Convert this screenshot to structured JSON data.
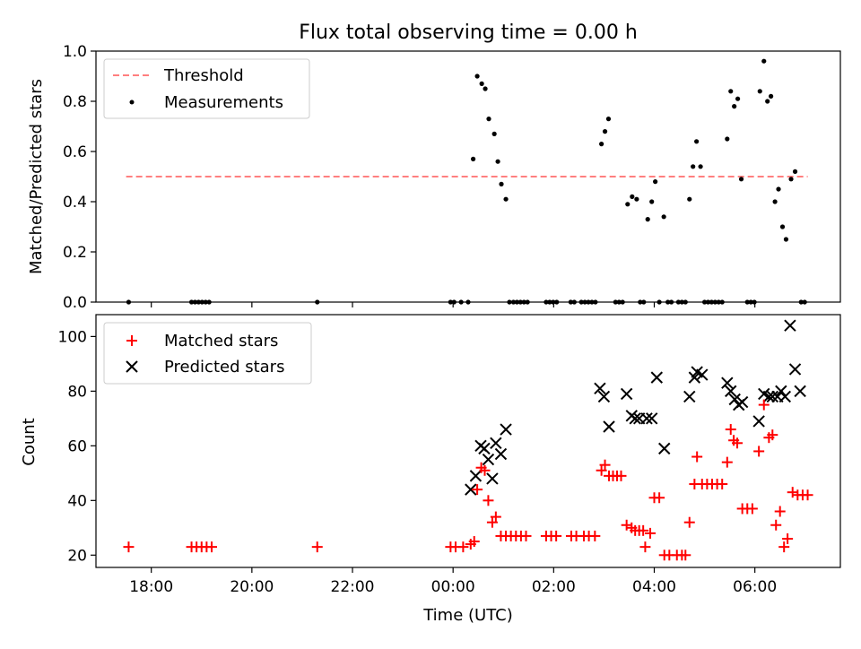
{
  "chart_data": [
    {
      "type": "scatter",
      "title": "Flux total observing time = 0.00 h",
      "xlabel": "",
      "ylabel": "Matched/Predicted stars",
      "xlim": [
        -7.1,
        7.7
      ],
      "ylim": [
        0.0,
        1.0
      ],
      "yticks": [
        "0.0",
        "0.2",
        "0.4",
        "0.6",
        "0.8",
        "1.0"
      ],
      "legend_position": "top-left",
      "threshold": {
        "name": "Threshold",
        "y": 0.5,
        "x_range": [
          -6.5,
          7.05
        ],
        "color": "#ff7f7f"
      },
      "series": [
        {
          "name": "Measurements",
          "color": "#000000",
          "points": [
            [
              -6.45,
              0.0
            ],
            [
              -5.2,
              0.0
            ],
            [
              -5.13,
              0.0
            ],
            [
              -5.06,
              0.0
            ],
            [
              -4.99,
              0.0
            ],
            [
              -4.92,
              0.0
            ],
            [
              -4.85,
              0.0
            ],
            [
              -2.7,
              0.0
            ],
            [
              -0.05,
              0.0
            ],
            [
              0.02,
              0.0
            ],
            [
              0.16,
              0.0
            ],
            [
              0.3,
              0.0
            ],
            [
              0.4,
              0.57
            ],
            [
              0.48,
              0.9
            ],
            [
              0.57,
              0.87
            ],
            [
              0.64,
              0.85
            ],
            [
              0.71,
              0.73
            ],
            [
              0.82,
              0.67
            ],
            [
              0.89,
              0.56
            ],
            [
              0.96,
              0.47
            ],
            [
              1.05,
              0.41
            ],
            [
              1.12,
              0.0
            ],
            [
              1.2,
              0.0
            ],
            [
              1.27,
              0.0
            ],
            [
              1.34,
              0.0
            ],
            [
              1.41,
              0.0
            ],
            [
              1.48,
              0.0
            ],
            [
              1.85,
              0.0
            ],
            [
              1.92,
              0.0
            ],
            [
              1.99,
              0.0
            ],
            [
              2.06,
              0.0
            ],
            [
              2.34,
              0.0
            ],
            [
              2.41,
              0.0
            ],
            [
              2.55,
              0.0
            ],
            [
              2.62,
              0.0
            ],
            [
              2.69,
              0.0
            ],
            [
              2.76,
              0.0
            ],
            [
              2.83,
              0.0
            ],
            [
              2.95,
              0.63
            ],
            [
              3.02,
              0.68
            ],
            [
              3.09,
              0.73
            ],
            [
              3.23,
              0.0
            ],
            [
              3.3,
              0.0
            ],
            [
              3.37,
              0.0
            ],
            [
              3.47,
              0.39
            ],
            [
              3.56,
              0.42
            ],
            [
              3.65,
              0.41
            ],
            [
              3.72,
              0.0
            ],
            [
              3.79,
              0.0
            ],
            [
              3.87,
              0.33
            ],
            [
              3.95,
              0.4
            ],
            [
              4.02,
              0.48
            ],
            [
              4.1,
              0.0
            ],
            [
              4.19,
              0.34
            ],
            [
              4.27,
              0.0
            ],
            [
              4.34,
              0.0
            ],
            [
              4.48,
              0.0
            ],
            [
              4.55,
              0.0
            ],
            [
              4.62,
              0.0
            ],
            [
              4.7,
              0.41
            ],
            [
              4.77,
              0.54
            ],
            [
              4.84,
              0.64
            ],
            [
              4.92,
              0.54
            ],
            [
              5.0,
              0.0
            ],
            [
              5.07,
              0.0
            ],
            [
              5.14,
              0.0
            ],
            [
              5.21,
              0.0
            ],
            [
              5.28,
              0.0
            ],
            [
              5.35,
              0.0
            ],
            [
              5.45,
              0.65
            ],
            [
              5.52,
              0.84
            ],
            [
              5.59,
              0.78
            ],
            [
              5.66,
              0.81
            ],
            [
              5.73,
              0.49
            ],
            [
              5.85,
              0.0
            ],
            [
              5.92,
              0.0
            ],
            [
              5.99,
              0.0
            ],
            [
              6.1,
              0.84
            ],
            [
              6.18,
              0.96
            ],
            [
              6.25,
              0.8
            ],
            [
              6.32,
              0.82
            ],
            [
              6.4,
              0.4
            ],
            [
              6.47,
              0.45
            ],
            [
              6.55,
              0.3
            ],
            [
              6.62,
              0.25
            ],
            [
              6.72,
              0.49
            ],
            [
              6.8,
              0.52
            ],
            [
              6.92,
              0.0
            ],
            [
              6.99,
              0.0
            ]
          ]
        }
      ]
    },
    {
      "type": "scatter",
      "title": "",
      "xlabel": "Time (UTC)",
      "ylabel": "Count",
      "xlim": [
        -7.1,
        7.7
      ],
      "ylim": [
        15.5,
        108
      ],
      "yticks": [
        "20",
        "40",
        "60",
        "80",
        "100"
      ],
      "xticks": [
        "18:00",
        "20:00",
        "22:00",
        "00:00",
        "02:00",
        "04:00",
        "06:00"
      ],
      "legend_position": "top-left",
      "series": [
        {
          "name": "Matched stars",
          "marker": "plus",
          "color": "#ff0000",
          "points": [
            [
              -6.45,
              23
            ],
            [
              -5.2,
              23
            ],
            [
              -5.1,
              23
            ],
            [
              -5.0,
              23
            ],
            [
              -4.9,
              23
            ],
            [
              -4.8,
              23
            ],
            [
              -2.7,
              23
            ],
            [
              -0.05,
              23
            ],
            [
              0.05,
              23
            ],
            [
              0.2,
              23
            ],
            [
              0.35,
              24
            ],
            [
              0.42,
              25
            ],
            [
              0.48,
              44
            ],
            [
              0.56,
              52
            ],
            [
              0.63,
              51
            ],
            [
              0.7,
              40
            ],
            [
              0.78,
              32
            ],
            [
              0.85,
              34
            ],
            [
              0.95,
              27
            ],
            [
              1.05,
              27
            ],
            [
              1.15,
              27
            ],
            [
              1.25,
              27
            ],
            [
              1.35,
              27
            ],
            [
              1.45,
              27
            ],
            [
              1.85,
              27
            ],
            [
              1.95,
              27
            ],
            [
              2.05,
              27
            ],
            [
              2.35,
              27
            ],
            [
              2.45,
              27
            ],
            [
              2.6,
              27
            ],
            [
              2.7,
              27
            ],
            [
              2.82,
              27
            ],
            [
              2.95,
              51
            ],
            [
              3.02,
              53
            ],
            [
              3.1,
              49
            ],
            [
              3.18,
              49
            ],
            [
              3.26,
              49
            ],
            [
              3.34,
              49
            ],
            [
              3.45,
              31
            ],
            [
              3.55,
              30
            ],
            [
              3.62,
              29
            ],
            [
              3.7,
              29
            ],
            [
              3.78,
              29
            ],
            [
              3.82,
              23
            ],
            [
              3.92,
              28
            ],
            [
              4.0,
              41
            ],
            [
              4.1,
              41
            ],
            [
              4.2,
              20
            ],
            [
              4.3,
              20
            ],
            [
              4.45,
              20
            ],
            [
              4.55,
              20
            ],
            [
              4.62,
              20
            ],
            [
              4.7,
              32
            ],
            [
              4.8,
              46
            ],
            [
              4.85,
              56
            ],
            [
              4.95,
              46
            ],
            [
              5.05,
              46
            ],
            [
              5.15,
              46
            ],
            [
              5.25,
              46
            ],
            [
              5.35,
              46
            ],
            [
              5.45,
              54
            ],
            [
              5.52,
              66
            ],
            [
              5.58,
              62
            ],
            [
              5.65,
              61
            ],
            [
              5.75,
              37
            ],
            [
              5.85,
              37
            ],
            [
              5.95,
              37
            ],
            [
              6.08,
              58
            ],
            [
              6.18,
              75
            ],
            [
              6.28,
              63
            ],
            [
              6.35,
              64
            ],
            [
              6.42,
              31
            ],
            [
              6.5,
              36
            ],
            [
              6.58,
              23
            ],
            [
              6.65,
              26
            ],
            [
              6.75,
              43
            ],
            [
              6.85,
              42
            ],
            [
              6.95,
              42
            ],
            [
              7.05,
              42
            ]
          ]
        },
        {
          "name": "Predicted stars",
          "marker": "x",
          "color": "#000000",
          "points": [
            [
              0.35,
              44
            ],
            [
              0.45,
              49
            ],
            [
              0.55,
              60
            ],
            [
              0.62,
              59
            ],
            [
              0.7,
              55
            ],
            [
              0.78,
              48
            ],
            [
              0.85,
              61
            ],
            [
              0.95,
              57
            ],
            [
              1.05,
              66
            ],
            [
              2.92,
              81
            ],
            [
              3.0,
              78
            ],
            [
              3.1,
              67
            ],
            [
              3.45,
              79
            ],
            [
              3.55,
              71
            ],
            [
              3.62,
              70
            ],
            [
              3.7,
              70
            ],
            [
              3.85,
              70
            ],
            [
              3.95,
              70
            ],
            [
              4.05,
              85
            ],
            [
              4.2,
              59
            ],
            [
              4.7,
              78
            ],
            [
              4.8,
              85
            ],
            [
              4.85,
              87
            ],
            [
              4.95,
              86
            ],
            [
              5.45,
              83
            ],
            [
              5.52,
              80
            ],
            [
              5.6,
              77
            ],
            [
              5.68,
              75
            ],
            [
              5.75,
              76
            ],
            [
              6.08,
              69
            ],
            [
              6.18,
              79
            ],
            [
              6.28,
              78
            ],
            [
              6.35,
              78
            ],
            [
              6.45,
              78
            ],
            [
              6.52,
              80
            ],
            [
              6.6,
              78
            ],
            [
              6.7,
              104
            ],
            [
              6.8,
              88
            ],
            [
              6.9,
              80
            ]
          ]
        }
      ]
    }
  ]
}
